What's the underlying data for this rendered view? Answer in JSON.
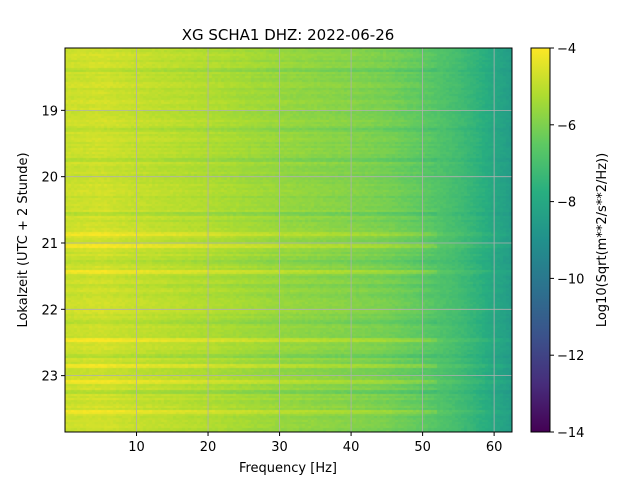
{
  "chart_data": {
    "type": "heatmap",
    "title": "XG SCHA1  DHZ: 2022-06-26",
    "xlabel": "Frequency [Hz]",
    "ylabel": "Lokalzeit (UTC + 2 Stunde)",
    "colorbar_label": "Log10(Sqrt(m**2/s**2/Hz))",
    "xlim": [
      0,
      62.5
    ],
    "ylim": [
      18.06,
      23.85
    ],
    "y_inverted": true,
    "x_ticks": [
      10,
      20,
      30,
      40,
      50,
      60
    ],
    "x_tick_labels": [
      "10",
      "20",
      "30",
      "40",
      "50",
      "60"
    ],
    "y_ticks": [
      19,
      20,
      21,
      22,
      23
    ],
    "y_tick_labels": [
      "19",
      "20",
      "21",
      "22",
      "23"
    ],
    "clim": [
      -14,
      -4
    ],
    "colorbar_ticks": [
      -4,
      -6,
      -8,
      -10,
      -12,
      -14
    ],
    "colorbar_tick_labels": [
      "−4",
      "−6",
      "−8",
      "−10",
      "−12",
      "−14"
    ],
    "colormap": "viridis",
    "grid": true,
    "grid_color": "#b0b0b0",
    "frequency_profile": {
      "x": [
        0,
        5,
        10,
        20,
        30,
        40,
        45,
        50,
        55,
        58,
        60,
        62.5
      ],
      "y": [
        -4.8,
        -4.7,
        -4.9,
        -5.2,
        -5.6,
        -5.9,
        -6.1,
        -6.5,
        -7.1,
        -7.6,
        -8.0,
        -8.5
      ]
    },
    "bright_bands": [
      20.85,
      21.05,
      21.45,
      22.45,
      22.85,
      23.1,
      23.55
    ],
    "dark_bands": [
      18.4,
      19.3,
      19.75,
      20.55,
      21.3,
      21.65,
      22.2,
      22.7,
      23.25
    ]
  }
}
